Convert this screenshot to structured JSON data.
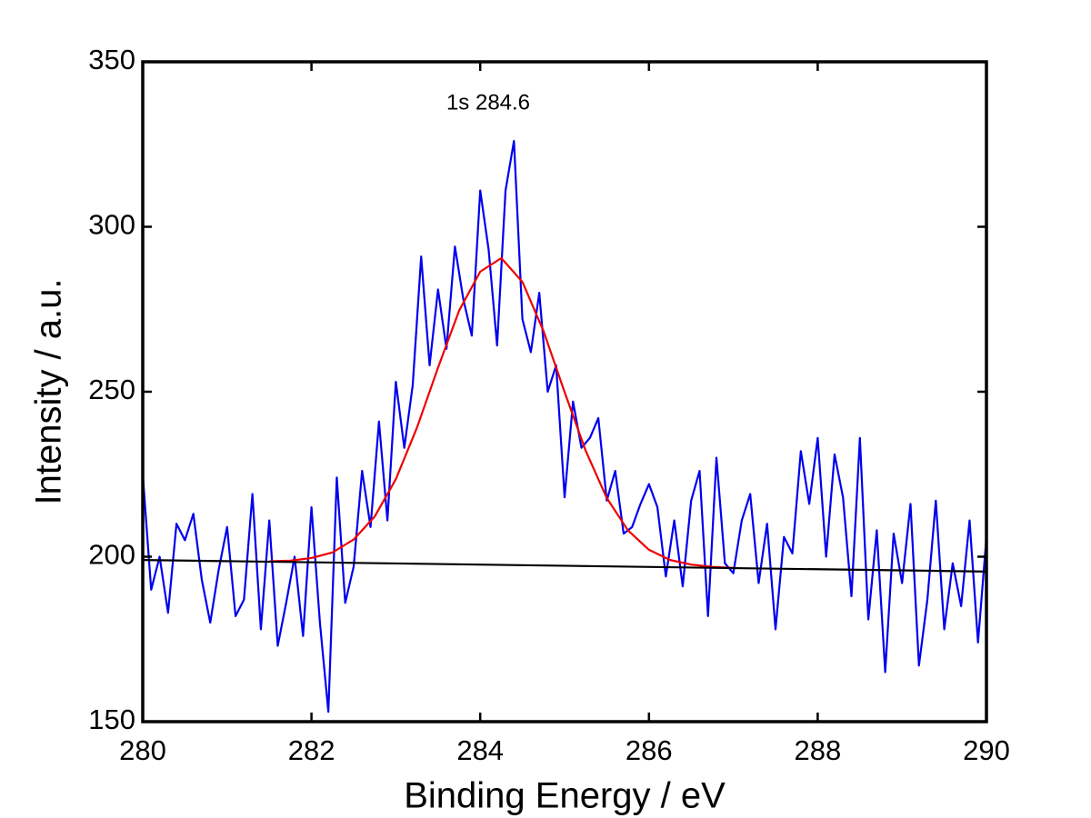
{
  "chart_data": {
    "type": "line",
    "xlabel": "Binding Energy / eV",
    "ylabel": "Intensity / a.u.",
    "annotations": [
      "1s 284.6"
    ],
    "xlim": [
      280,
      290
    ],
    "xticks": [
      280,
      282,
      284,
      286,
      288,
      290
    ],
    "ylim": [
      150,
      350
    ],
    "yticks": [
      150,
      200,
      250,
      300,
      350
    ],
    "grid": false,
    "series": [
      {
        "color": "#0000ee",
        "x": [
          280.0,
          280.1,
          280.2,
          280.3,
          280.4,
          280.5,
          280.6,
          280.7,
          280.8,
          280.9,
          281.0,
          281.1,
          281.2,
          281.3,
          281.4,
          281.5,
          281.6,
          281.7,
          281.8,
          281.9,
          282.0,
          282.1,
          282.2,
          282.3,
          282.4,
          282.5,
          282.6,
          282.7,
          282.8,
          282.9,
          283.0,
          283.1,
          283.2,
          283.3,
          283.4,
          283.5,
          283.6,
          283.7,
          283.8,
          283.9,
          284.0,
          284.1,
          284.2,
          284.3,
          284.4,
          284.5,
          284.6,
          284.7,
          284.8,
          284.9,
          285.0,
          285.1,
          285.2,
          285.3,
          285.4,
          285.5,
          285.6,
          285.7,
          285.8,
          285.9,
          286.0,
          286.1,
          286.2,
          286.3,
          286.4,
          286.5,
          286.6,
          286.7,
          286.8,
          286.9,
          287.0,
          287.1,
          287.2,
          287.3,
          287.4,
          287.5,
          287.6,
          287.7,
          287.8,
          287.9,
          288.0,
          288.1,
          288.2,
          288.3,
          288.4,
          288.5,
          288.6,
          288.7,
          288.8,
          288.9,
          289.0,
          289.1,
          289.2,
          289.3,
          289.4,
          289.5,
          289.6,
          289.7,
          289.8,
          289.9,
          290.0
        ],
        "values": [
          225,
          190,
          200,
          183,
          210,
          205,
          213,
          193,
          180,
          196,
          209,
          182,
          187,
          219,
          178,
          211,
          173,
          186,
          200,
          176,
          215,
          180,
          153,
          224,
          186,
          197,
          226,
          209,
          241,
          211,
          253,
          233,
          252,
          291,
          258,
          281,
          263,
          294,
          278,
          267,
          311,
          293,
          264,
          311,
          326,
          272,
          262,
          280,
          250,
          258,
          218,
          247,
          233,
          236,
          242,
          217,
          226,
          207,
          209,
          216,
          222,
          215,
          194,
          211,
          191,
          217,
          226,
          182,
          230,
          198,
          195,
          211,
          219,
          192,
          210,
          178,
          206,
          201,
          232,
          216,
          236,
          200,
          231,
          218,
          188,
          236,
          181,
          208,
          165,
          207,
          192,
          216,
          167,
          187,
          217,
          178,
          198,
          185,
          211,
          174,
          206
        ]
      },
      {
        "color": "#ee0000",
        "x": [
          281.5,
          281.75,
          282.0,
          282.25,
          282.5,
          282.75,
          283.0,
          283.25,
          283.5,
          283.75,
          284.0,
          284.25,
          284.5,
          284.75,
          285.0,
          285.25,
          285.5,
          285.75,
          286.0,
          286.25,
          286.5,
          286.75,
          287.0
        ],
        "values": [
          198.6,
          198.8,
          199.6,
          201.3,
          205.2,
          212.2,
          223.5,
          239.1,
          257.3,
          274.6,
          286.4,
          290.5,
          283.3,
          268.4,
          249.9,
          232.1,
          217.8,
          208.0,
          202.1,
          199.0,
          197.6,
          196.9,
          196.6
        ]
      },
      {
        "color": "#000000",
        "x": [
          280,
          290
        ],
        "values": [
          199,
          195.5
        ]
      }
    ]
  }
}
